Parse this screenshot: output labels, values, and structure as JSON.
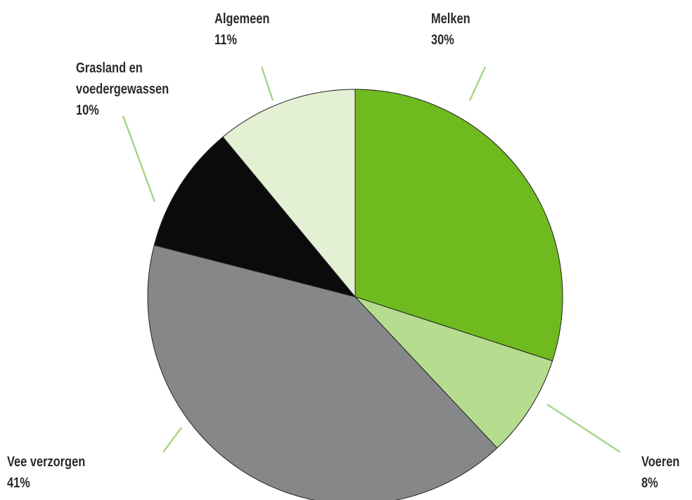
{
  "chart_data": {
    "type": "pie",
    "categories": [
      "Melken",
      "Voeren",
      "Vee verzorgen",
      "Grasland en voedergewassen",
      "Algemeen"
    ],
    "values": [
      30,
      8,
      41,
      10,
      11
    ],
    "value_labels": [
      "30%",
      "8%",
      "41%",
      "10%",
      "11%"
    ],
    "colors": [
      "#6fba1f",
      "#b5dc8f",
      "#858789",
      "#0b0b0b",
      "#e4f0d4"
    ]
  }
}
